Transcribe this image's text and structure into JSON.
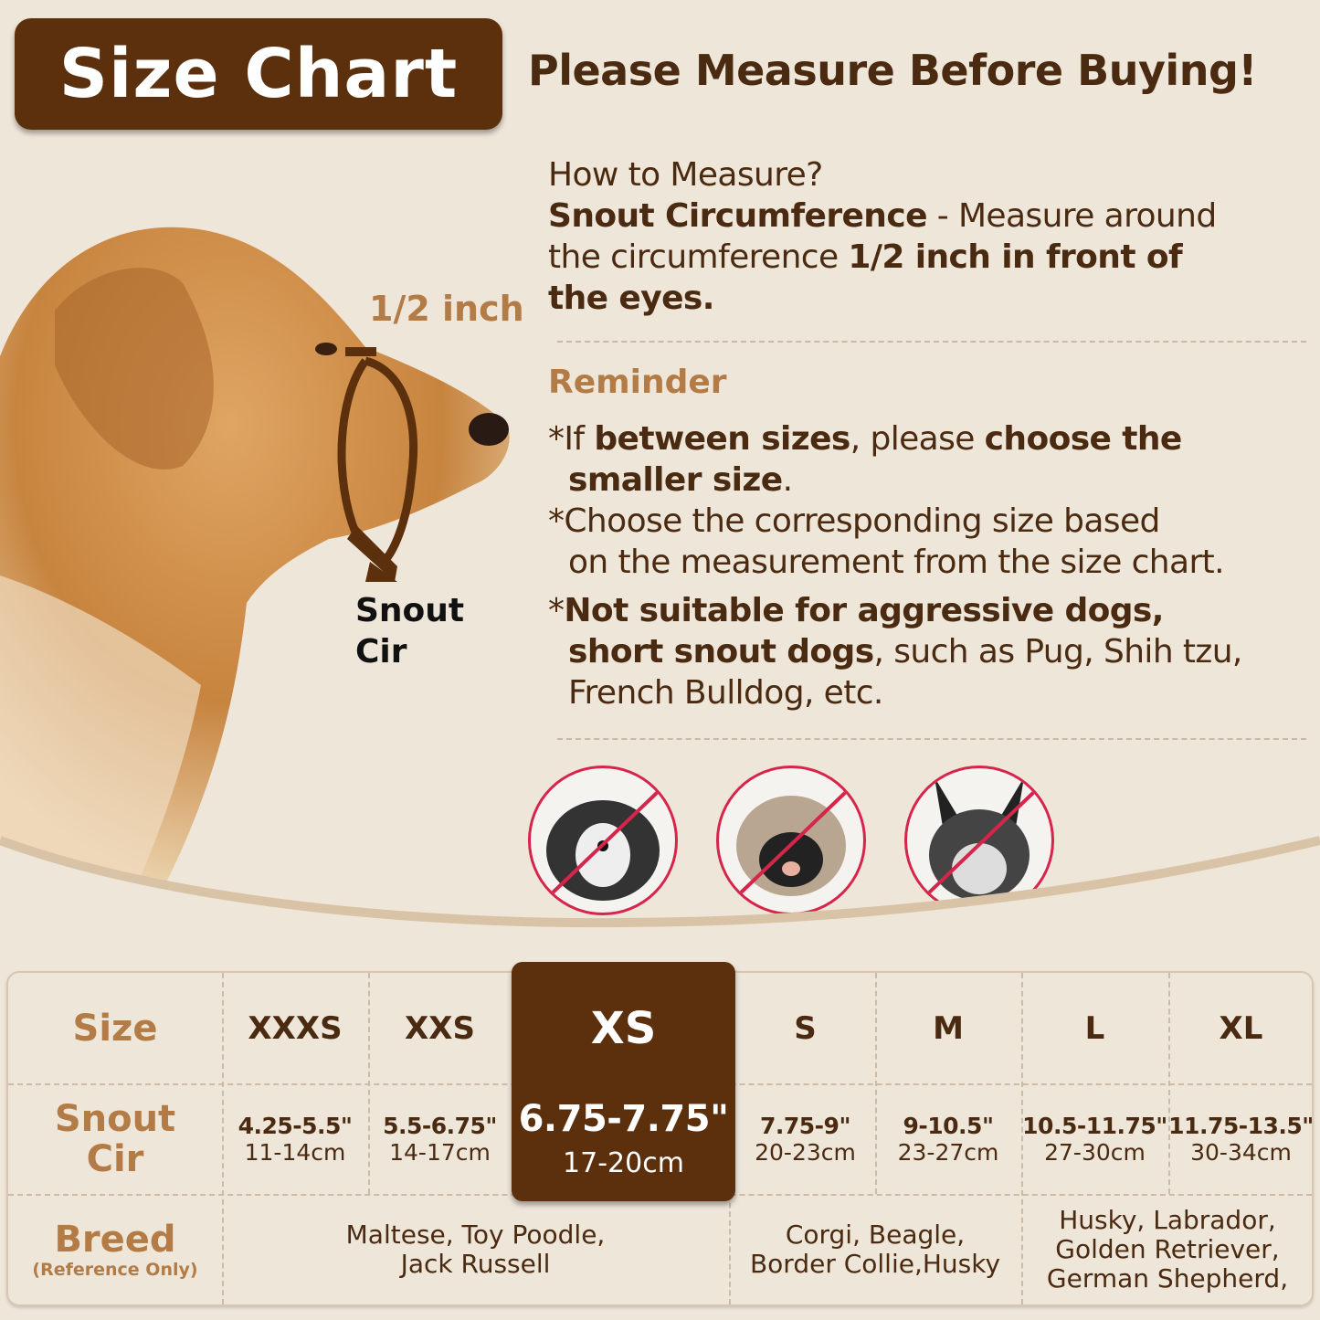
{
  "title": "Size Chart",
  "headline": "Please Measure Before Buying!",
  "measure": {
    "question": "How to Measure?",
    "term": "Snout Circumference",
    "text1": " - Measure around",
    "text2": "the circumference ",
    "bold2": "1/2 inch in front of",
    "bold3": "the eyes."
  },
  "diagram": {
    "half_inch": "1/2 inch",
    "snout_line1": "Snout",
    "snout_line2": "Cir"
  },
  "reminder": {
    "title": "Reminder",
    "r1a": "*If ",
    "r1b": "between sizes",
    "r1c": ", please ",
    "r1d": "choose the",
    "r1e": "smaller size",
    ".": ".",
    "r2a": "*Choose the corresponding size based",
    "r2b": "on the measurement from the size chart.",
    "r3a": "*",
    "r3b": "Not suitable for aggressive dogs,",
    "r3c": "short snout dogs",
    "r3d": ", such as Pug, Shih tzu,",
    "r3e": "French Bulldog, etc."
  },
  "not_suitable_icons": [
    "shih-tzu-prohibited-icon",
    "pug-prohibited-icon",
    "french-bulldog-prohibited-icon"
  ],
  "colors": {
    "brand": "#5c300d",
    "accent": "#b37b45",
    "prohibited": "#d7244a",
    "background": "#efe6da"
  },
  "table": {
    "row_headers": {
      "size": "Size",
      "snout1": "Snout",
      "snout2": "Cir",
      "breed": "Breed",
      "breed_note": "(Reference Only)"
    },
    "highlighted": "XS",
    "sizes": [
      {
        "size": "XXXS",
        "inch": "4.25-5.5\"",
        "cm": "11-14cm"
      },
      {
        "size": "XXS",
        "inch": "5.5-6.75\"",
        "cm": "14-17cm"
      },
      {
        "size": "XS",
        "inch": "6.75-7.75\"",
        "cm": "17-20cm"
      },
      {
        "size": "S",
        "inch": "7.75-9\"",
        "cm": "20-23cm"
      },
      {
        "size": "M",
        "inch": "9-10.5\"",
        "cm": "23-27cm"
      },
      {
        "size": "L",
        "inch": "10.5-11.75\"",
        "cm": "27-30cm"
      },
      {
        "size": "XL",
        "inch": "11.75-13.5\"",
        "cm": "30-34cm"
      }
    ],
    "breeds": [
      {
        "lines": [
          "Maltese, Toy Poodle,",
          "Jack Russell"
        ]
      },
      {
        "lines": [
          "Corgi, Beagle,",
          "Border Collie,Husky"
        ]
      },
      {
        "lines": [
          "Husky, Labrador,",
          "Golden Retriever,",
          "German Shepherd,"
        ]
      }
    ]
  }
}
